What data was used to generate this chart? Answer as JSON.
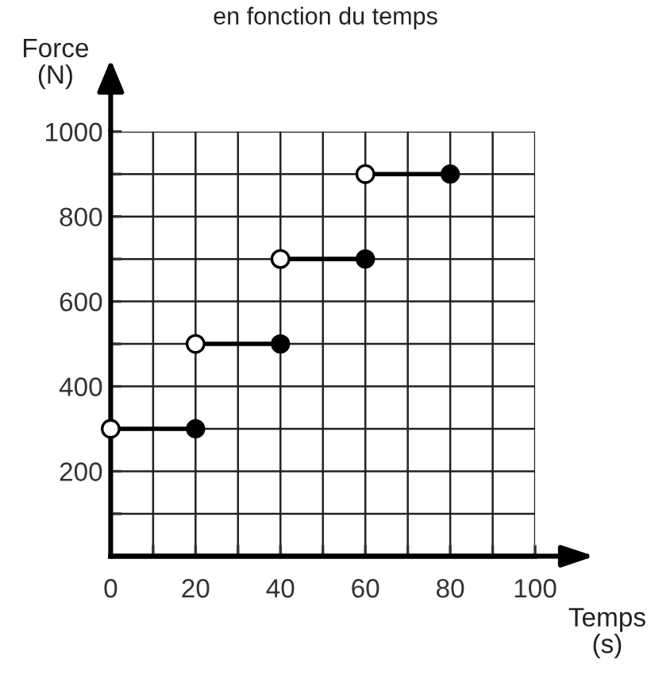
{
  "chart_data": {
    "type": "line",
    "title": "en fonction du temps",
    "xlabel": "Temps\n(s)",
    "ylabel": "Force\n(N)",
    "series": [
      {
        "color": "#000000",
        "x": [
          0,
          20
        ],
        "values": [
          300,
          300
        ]
      },
      {
        "color": "#000000",
        "x": [
          20,
          40
        ],
        "values": [
          500,
          500
        ]
      },
      {
        "color": "#000000",
        "x": [
          40,
          60
        ],
        "values": [
          700,
          700
        ]
      },
      {
        "color": "#000000",
        "x": [
          60,
          80
        ],
        "values": [
          900,
          900
        ]
      }
    ],
    "marker": "circle",
    "line_style": "solid",
    "grid": true,
    "xlim": [
      0,
      100
    ],
    "ylim": [
      0,
      1000
    ],
    "xticks": [
      0,
      {
        "value": 10,
        "label": null
      },
      20,
      {
        "value": 30,
        "label": null
      },
      40,
      {
        "value": 50,
        "label": null
      },
      60,
      {
        "value": 70,
        "label": null
      },
      80,
      {
        "value": 90,
        "label": null
      },
      100
    ],
    "yticks": [
      {
        "value": 0,
        "label": null
      },
      {
        "value": 100,
        "label": null
      },
      200,
      {
        "value": 300,
        "label": null
      },
      400,
      {
        "value": 500,
        "label": null
      },
      600,
      {
        "value": 700,
        "label": null
      },
      800,
      {
        "value": 900,
        "label": null
      },
      1000
    ]
  }
}
